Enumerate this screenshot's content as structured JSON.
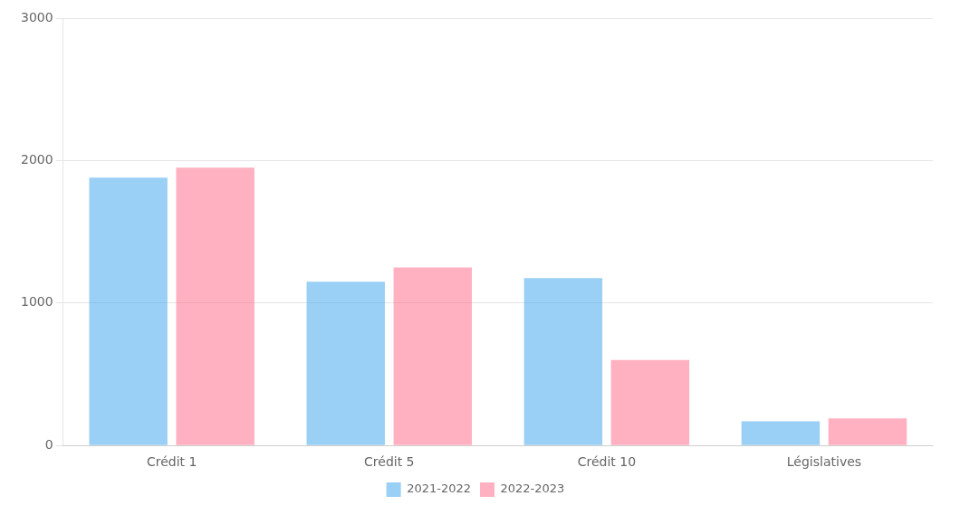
{
  "chart_data": {
    "type": "bar",
    "categories": [
      "Crédit 1",
      "Crédit 5",
      "Crédit 10",
      "Législatives"
    ],
    "series": [
      {
        "name": "2021-2022",
        "values": [
          1880,
          1150,
          1175,
          170
        ]
      },
      {
        "name": "2022-2023",
        "values": [
          1950,
          1250,
          600,
          190
        ]
      }
    ],
    "ylim": [
      0,
      3000
    ],
    "yticks": [
      0,
      1000,
      2000,
      3000
    ],
    "grid": true,
    "legend": "bottom"
  }
}
